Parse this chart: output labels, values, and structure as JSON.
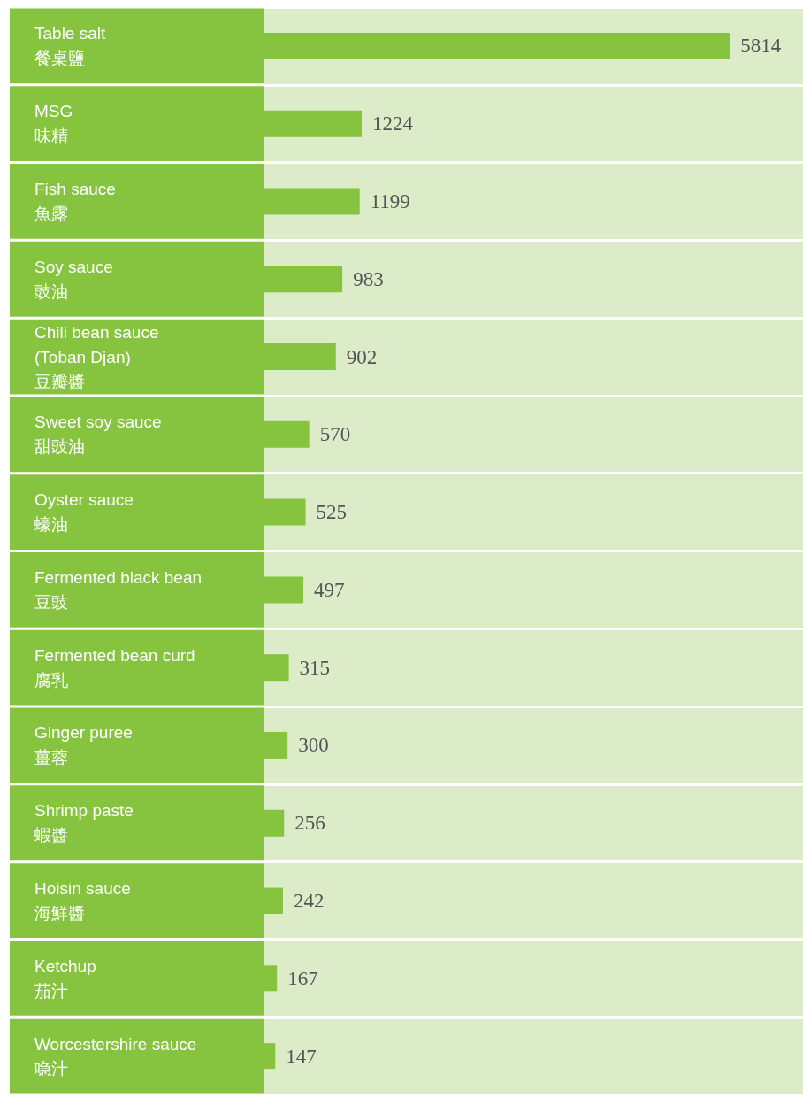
{
  "chart_data": {
    "type": "bar",
    "orientation": "horizontal",
    "categories": [
      "Table salt\n餐桌鹽",
      "MSG\n味精",
      "Fish sauce\n魚露",
      "Soy sauce\n豉油",
      "Chili bean sauce\n(Toban Djan)\n豆瓣醬",
      "Sweet soy sauce\n甜豉油",
      "Oyster sauce\n蠔油",
      "Fermented black bean\n豆豉",
      "Fermented bean curd\n腐乳",
      "Ginger puree\n薑蓉",
      "Shrimp paste\n蝦醬",
      "Hoisin sauce\n海鮮醬",
      "Ketchup\n茄汁",
      "Worcestershire sauce\n喼汁"
    ],
    "values": [
      5814,
      1224,
      1199,
      983,
      902,
      570,
      525,
      497,
      315,
      300,
      256,
      242,
      167,
      147
    ],
    "color": "#86c440",
    "data_labels": true
  }
}
